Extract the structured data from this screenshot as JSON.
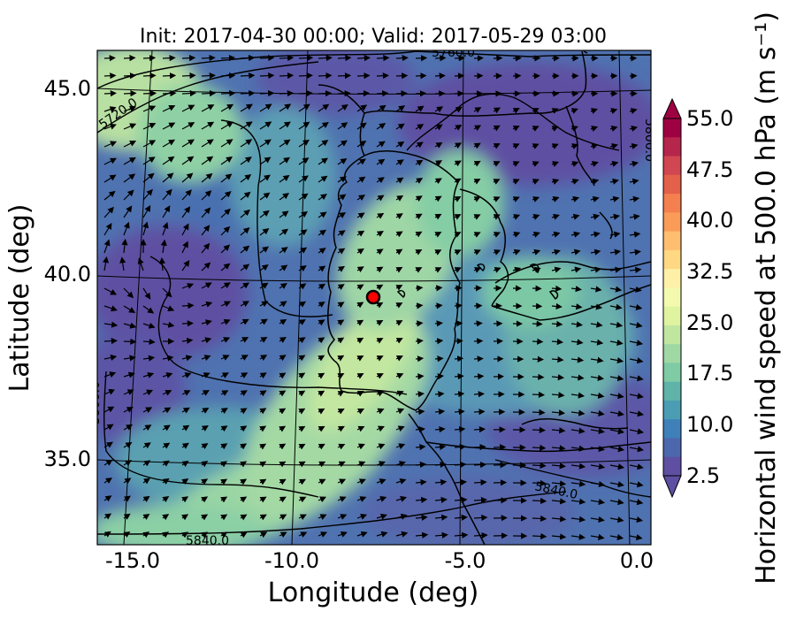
{
  "title": "Init: 2017-04-30 00:00; Valid: 2017-05-29 03:00",
  "xlabel": "Longitude (deg)",
  "ylabel": "Latitude (deg)",
  "x_ticks": [
    "-15.0",
    "-10.0",
    "-5.0",
    "0.0"
  ],
  "y_ticks": [
    "45.0",
    "40.0",
    "35.0"
  ],
  "colorbar": {
    "label": "Horizontal wind speed at 500.0 hPa (m s⁻¹)",
    "ticks": [
      "55.0",
      "47.5",
      "40.0",
      "32.5",
      "25.0",
      "17.5",
      "10.0",
      "2.5"
    ],
    "colors": [
      "#5e4fa2",
      "#4d67ae",
      "#3f80b9",
      "#4b9db4",
      "#5fb3a8",
      "#7ecba4",
      "#a0d8a4",
      "#c1e6a0",
      "#e0f3a1",
      "#f3fab0",
      "#fef0a6",
      "#fed882",
      "#fdbe6f",
      "#fa9b58",
      "#f47f4f",
      "#e3604a",
      "#d04651",
      "#b6254b",
      "#9e0142"
    ]
  },
  "contours": {
    "labels": [
      "5760.0",
      "5720.0",
      "5800.0",
      "5800.0",
      "5840.0",
      "5840.0"
    ]
  },
  "marker": {
    "name": "location-marker",
    "color": "#ff0000"
  },
  "chart_data": {
    "type": "heatmap",
    "title": "Init: 2017-04-30 00:00; Valid: 2017-05-29 03:00",
    "xlabel": "Longitude (deg)",
    "ylabel": "Latitude (deg)",
    "xlim": [
      -16,
      0.2
    ],
    "ylim": [
      32.6,
      46.0
    ],
    "variable": "Horizontal wind speed at 500.0 hPa",
    "units": "m s-1",
    "colorbar_range": [
      2.5,
      55.0
    ],
    "colorbar_ticks": [
      2.5,
      10.0,
      17.5,
      25.0,
      32.5,
      40.0,
      47.5,
      55.0
    ],
    "marker_location": {
      "lon": -7.6,
      "lat": 39.4
    },
    "jet_axis": {
      "from": {
        "lon": -13.5,
        "lat": 33.5
      },
      "to": {
        "lon": -7.0,
        "lat": 40.5
      },
      "peak_speed": 22
    }
  }
}
